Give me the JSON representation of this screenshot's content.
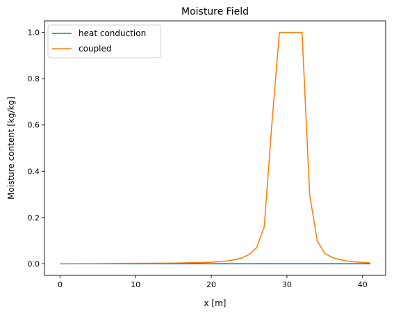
{
  "chart_data": {
    "type": "line",
    "title": "Moisture Field",
    "xlabel": "x [m]",
    "ylabel": "Moisture content [kg/kg]",
    "xlim": [
      -2.05,
      43.05
    ],
    "ylim": [
      -0.05,
      1.05
    ],
    "xticks": [
      0,
      10,
      20,
      30,
      40
    ],
    "yticks": [
      0.0,
      0.2,
      0.4,
      0.6,
      0.8,
      1.0
    ],
    "xtick_labels": [
      "0",
      "10",
      "20",
      "30",
      "40"
    ],
    "ytick_labels": [
      "0.0",
      "0.2",
      "0.4",
      "0.6",
      "0.8",
      "1.0"
    ],
    "grid": false,
    "legend_position": "upper-left",
    "series": [
      {
        "name": "heat conduction",
        "color": "#1f77b4",
        "x": [
          0,
          41
        ],
        "y": [
          0.0,
          0.0
        ]
      },
      {
        "name": "coupled",
        "color": "#ff7f0e",
        "x": [
          0,
          5,
          10,
          15,
          18,
          20,
          21,
          22,
          23,
          24,
          25,
          26,
          27,
          28,
          29,
          30,
          31,
          32,
          33,
          34,
          35,
          36,
          37,
          38,
          39,
          40,
          41
        ],
        "y": [
          0.0,
          0.001,
          0.002,
          0.003,
          0.005,
          0.007,
          0.009,
          0.012,
          0.017,
          0.025,
          0.04,
          0.07,
          0.16,
          0.6,
          1.0,
          1.0,
          1.0,
          1.0,
          0.3,
          0.1,
          0.045,
          0.027,
          0.018,
          0.012,
          0.008,
          0.006,
          0.004
        ]
      }
    ]
  }
}
